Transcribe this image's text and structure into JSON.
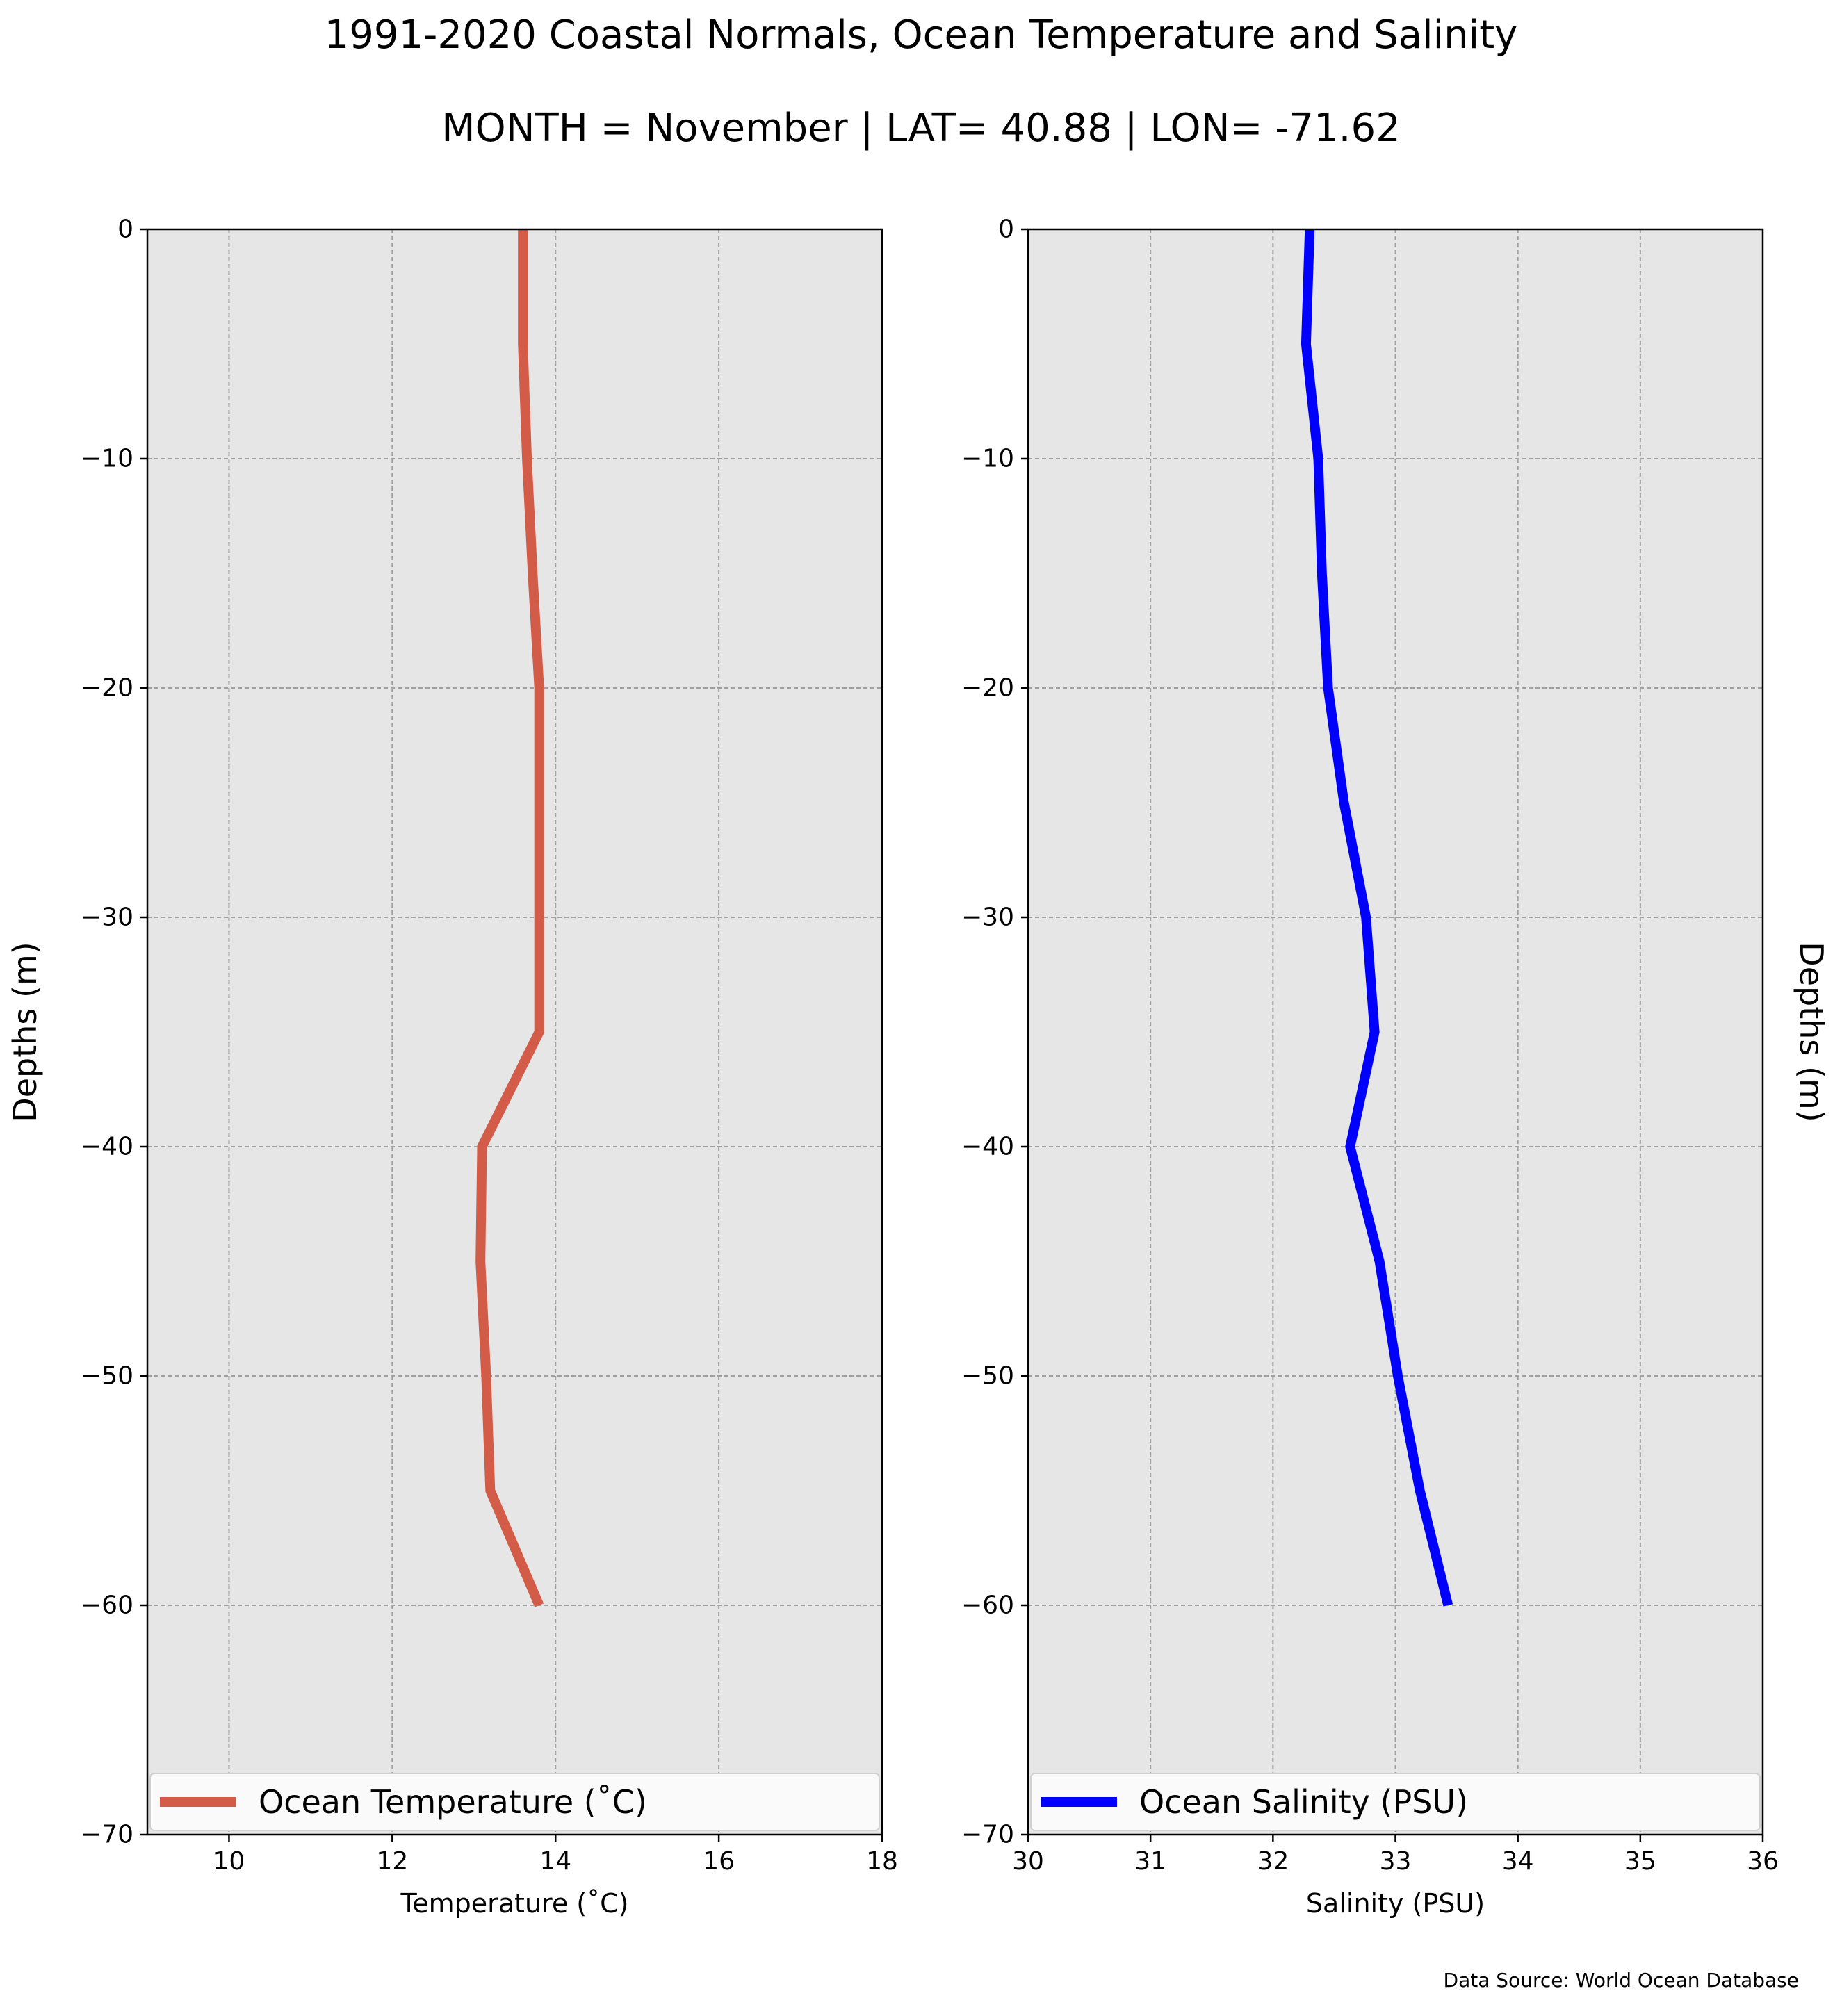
{
  "title": "1991-2020 Coastal Normals, Ocean Temperature and Salinity",
  "subtitle": "MONTH = November | LAT= 40.88 | LON= -71.62",
  "source": "Data Source: World Ocean Database",
  "chart_data": [
    {
      "type": "line",
      "xlabel": "Temperature (˚C)",
      "ylabel": "Depths (m)",
      "xlim": [
        9,
        18
      ],
      "ylim": [
        -70,
        0
      ],
      "xticks": [
        10,
        12,
        14,
        16,
        18
      ],
      "yticks": [
        0,
        -10,
        -20,
        -30,
        -40,
        -50,
        -60,
        -70
      ],
      "ytick_labels": [
        "0",
        "−10",
        "−20",
        "−30",
        "−40",
        "−50",
        "−60",
        "−70"
      ],
      "grid": true,
      "legend": "bottom",
      "series": [
        {
          "name": "Ocean Temperature (˚C)",
          "color": "#d35c49",
          "x": [
            13.6,
            13.6,
            13.65,
            13.72,
            13.8,
            13.8,
            13.8,
            13.8,
            13.1,
            13.08,
            13.15,
            13.2,
            13.8
          ],
          "y": [
            0,
            -5,
            -10,
            -15,
            -20,
            -25,
            -30,
            -35,
            -40,
            -45,
            -50,
            -55,
            -60
          ]
        }
      ]
    },
    {
      "type": "line",
      "xlabel": "Salinity (PSU)",
      "ylabel": "Depths (m)",
      "xlim": [
        30,
        36
      ],
      "ylim": [
        -70,
        0
      ],
      "xticks": [
        30,
        31,
        32,
        33,
        34,
        35,
        36
      ],
      "yticks": [
        0,
        -10,
        -20,
        -30,
        -40,
        -50,
        -60,
        -70
      ],
      "ytick_labels": [
        "0",
        "−10",
        "−20",
        "−30",
        "−40",
        "−50",
        "−60",
        "−70"
      ],
      "grid": true,
      "legend": "bottom",
      "series": [
        {
          "name": "Ocean Salinity (PSU)",
          "color": "#0000ff",
          "x": [
            32.3,
            32.27,
            32.37,
            32.4,
            32.45,
            32.58,
            32.76,
            32.83,
            32.63,
            32.87,
            33.02,
            33.2,
            33.43
          ],
          "y": [
            0,
            -5,
            -10,
            -15,
            -20,
            -25,
            -30,
            -35,
            -40,
            -45,
            -50,
            -55,
            -60
          ]
        }
      ]
    }
  ]
}
